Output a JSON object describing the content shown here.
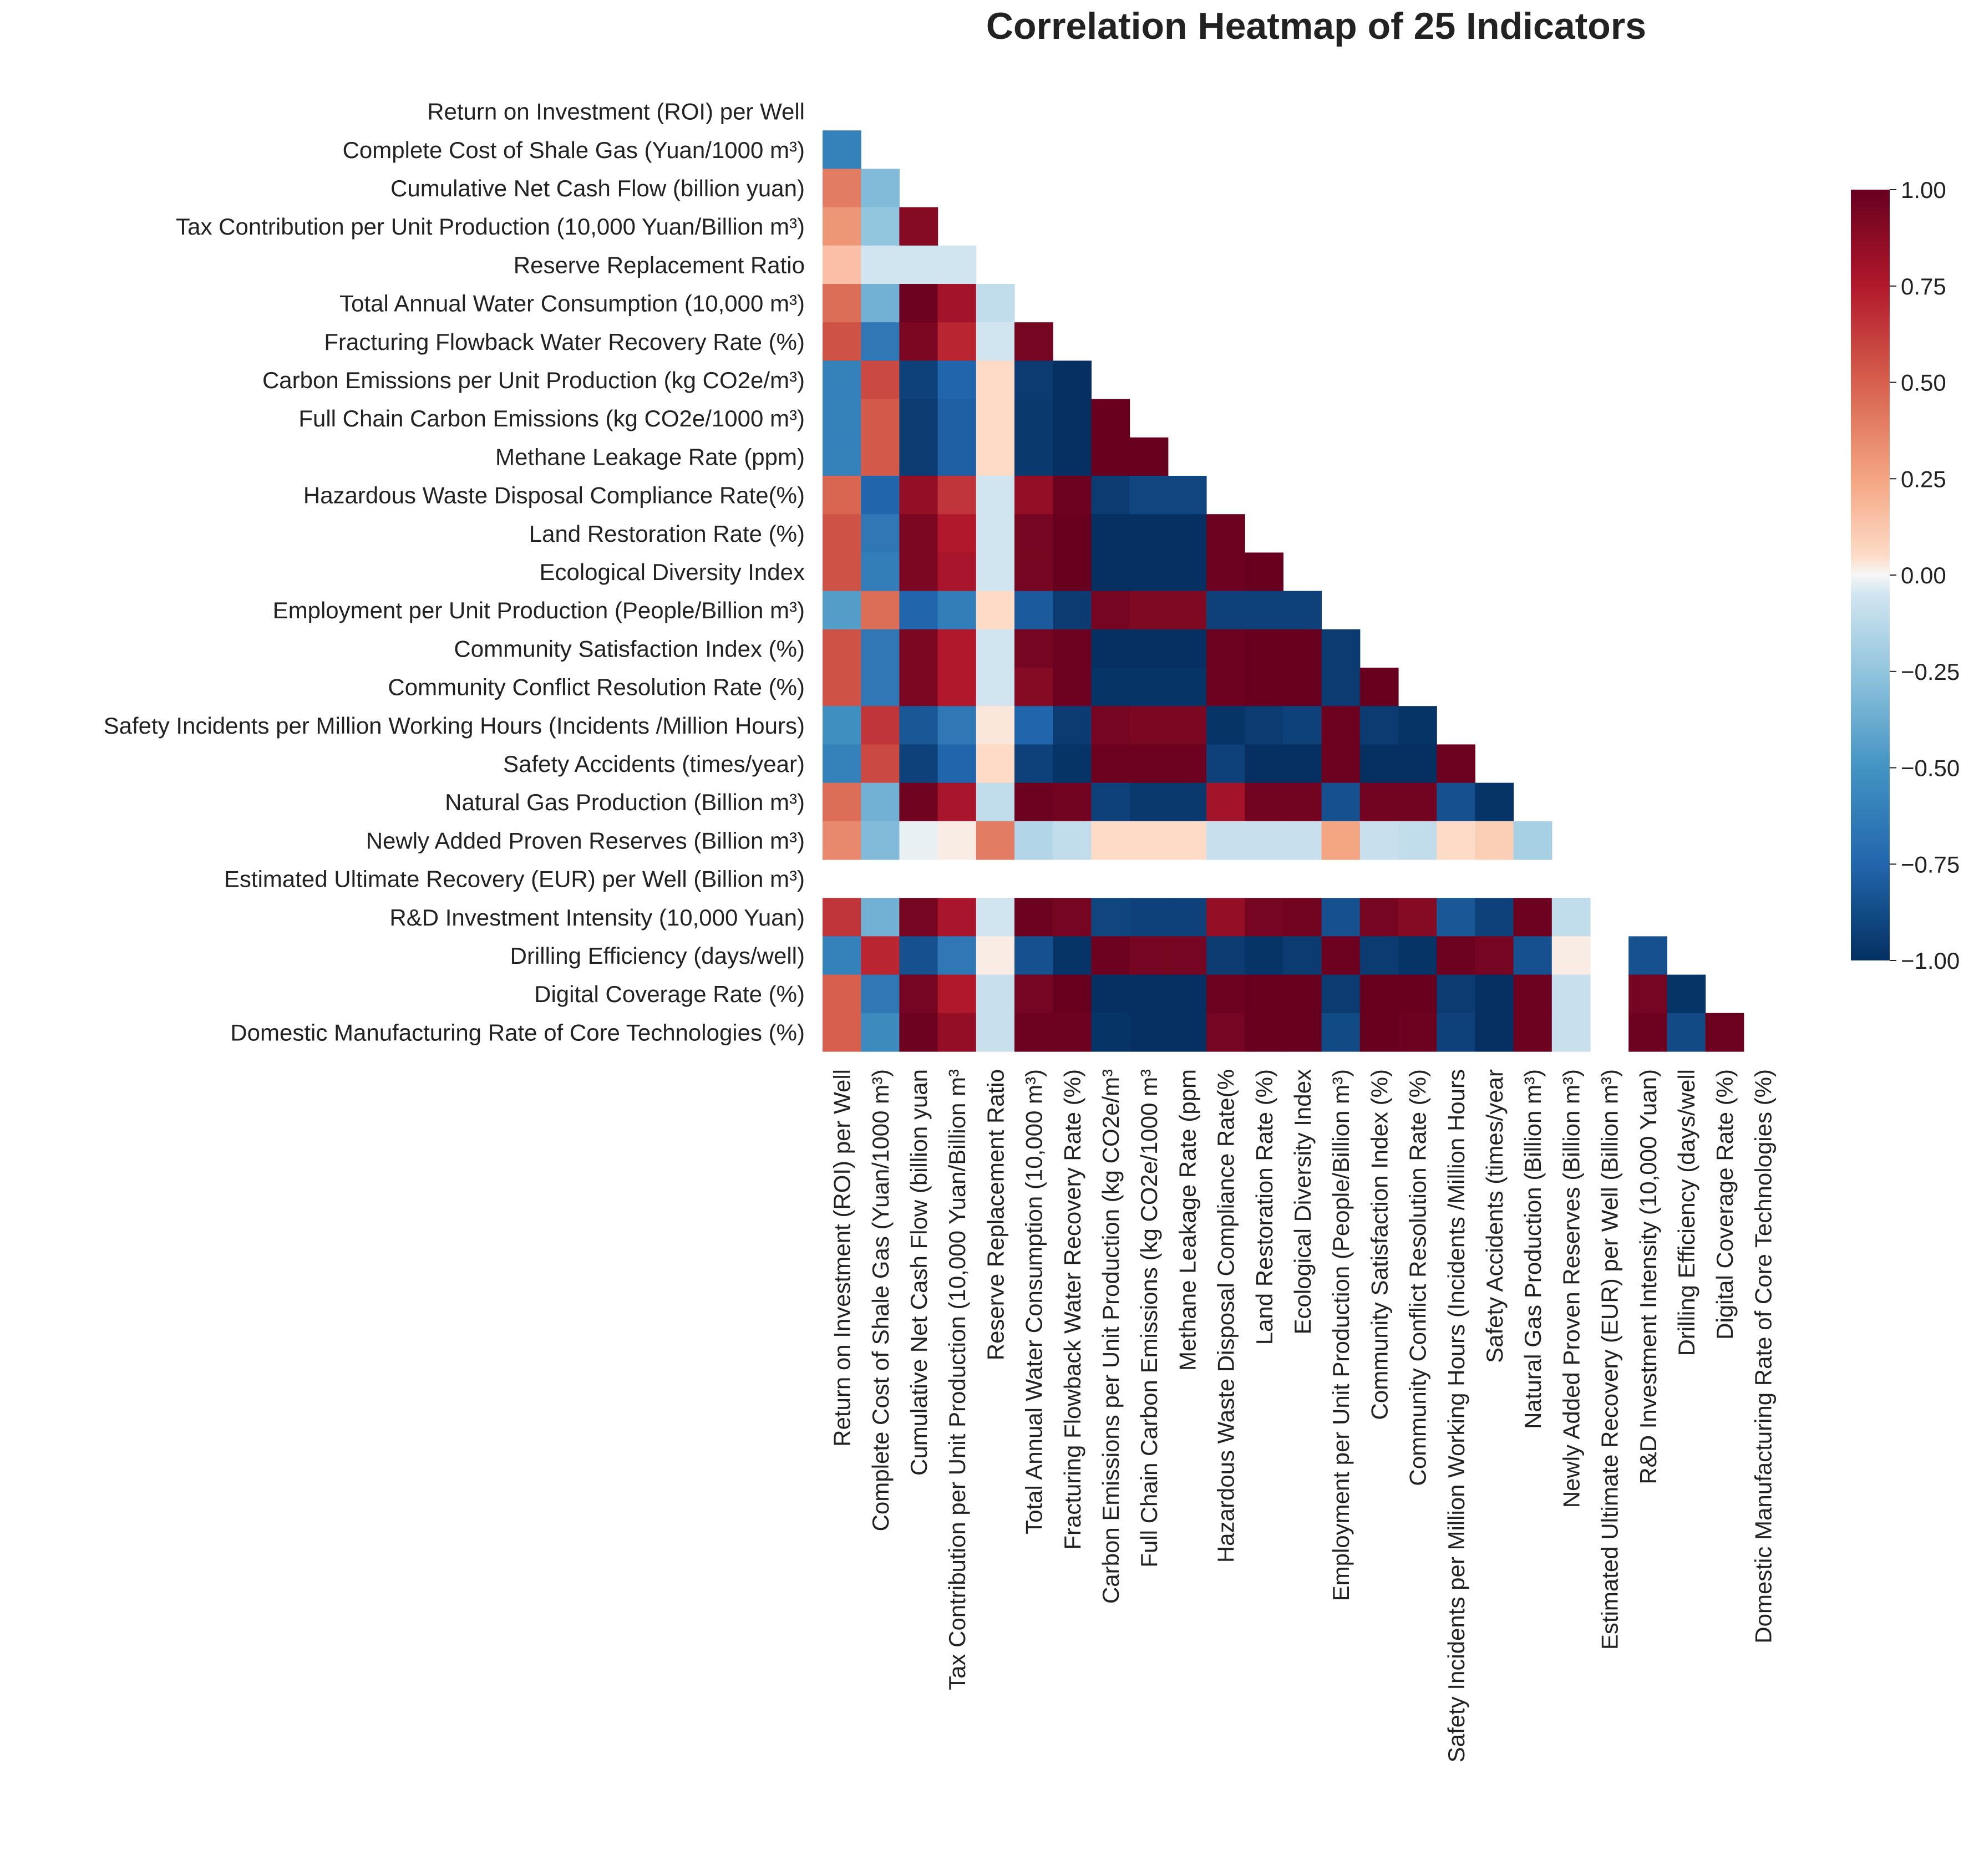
{
  "chart_data": {
    "type": "heatmap",
    "title": "Correlation Heatmap of 25 Indicators",
    "mask": "upper-triangle-including-diagonal",
    "labels": [
      "Return on Investment (ROI) per Well",
      "Complete Cost of Shale Gas (Yuan/1000 m³)",
      "Cumulative Net Cash Flow (billion yuan)",
      "Tax Contribution per Unit Production (10,000 Yuan/Billion m³)",
      "Reserve Replacement Ratio",
      "Total Annual Water Consumption (10,000 m³)",
      "Fracturing Flowback Water Recovery Rate (%)",
      "Carbon Emissions per Unit Production (kg CO2e/m³)",
      "Full Chain Carbon Emissions (kg CO2e/1000 m³)",
      "Methane Leakage Rate (ppm)",
      "Hazardous Waste Disposal Compliance Rate(%)",
      "Land Restoration Rate (%)",
      "Ecological Diversity Index",
      "Employment per Unit Production (People/Billion m³)",
      "Community Satisfaction Index (%)",
      "Community Conflict Resolution Rate (%)",
      "Safety Incidents per Million Working Hours (Incidents /Million Hours)",
      "Safety Accidents (times/year)",
      "Natural Gas Production (Billion m³)",
      "Newly Added Proven Reserves (Billion m³)",
      "Estimated Ultimate Recovery (EUR) per Well (Billion m³)",
      "R&D Investment Intensity (10,000 Yuan)",
      "Drilling Efficiency (days/well)",
      "Digital Coverage Rate (%)",
      "Domestic Manufacturing Rate of Core Technologies (%)"
    ],
    "x_tick_labels": [
      "Return on Investment (ROI) per Well",
      "Complete Cost of Shale Gas (Yuan/1000 m³)",
      "Cumulative Net Cash Flow (billion yuan",
      "Tax Contribution per Unit Production (10,000 Yuan/Billion m³",
      "Reserve Replacement Ratio",
      "Total Annual Water Consumption (10,000 m³)",
      "Fracturing Flowback Water Recovery Rate (%)",
      "Carbon Emissions per Unit Production (kg CO2e/m³",
      "Full Chain Carbon Emissions (kg CO2e/1000 m³",
      "Methane Leakage Rate (ppm",
      "Hazardous Waste Disposal Compliance Rate(%",
      "Land Restoration Rate (%)",
      "Ecological Diversity Index",
      "Employment per Unit Production (People/Billion m³)",
      "Community Satisfaction Index (%)",
      "Community Conflict Resolution Rate (%)",
      "Safety Incidents per Million Working Hours (Incidents /Million Hours",
      "Safety Accidents (times/year",
      "Natural Gas Production (Billion m³)",
      "Newly Added Proven Reserves (Billion m³)",
      "Estimated Ultimate Recovery (EUR) per Well (Billion m³)",
      "R&D Investment Intensity (10,000 Yuan)",
      "Drilling Efficiency (days/well",
      "Digital Coverage Rate (%)",
      "Domestic Manufacturing Rate of Core Technologies (%)"
    ],
    "lower_triangle_rows": [
      [],
      [
        -0.6
      ],
      [
        0.4,
        -0.3
      ],
      [
        0.3,
        -0.25,
        0.9
      ],
      [
        0.15,
        -0.05,
        -0.05,
        -0.05
      ],
      [
        0.45,
        -0.35,
        0.98,
        0.8,
        -0.1
      ],
      [
        0.55,
        -0.65,
        0.93,
        0.7,
        -0.05,
        0.95
      ],
      [
        -0.6,
        0.58,
        -0.92,
        -0.75,
        0.05,
        -0.95,
        -1.0
      ],
      [
        -0.6,
        0.52,
        -0.95,
        -0.78,
        0.05,
        -0.96,
        -1.0,
        1.0
      ],
      [
        -0.6,
        0.52,
        -0.95,
        -0.78,
        0.05,
        -0.96,
        -1.0,
        1.0,
        1.0
      ],
      [
        0.48,
        -0.75,
        0.85,
        0.65,
        -0.05,
        0.85,
        0.98,
        -0.95,
        -0.9,
        -0.9
      ],
      [
        0.55,
        -0.65,
        0.93,
        0.75,
        -0.05,
        0.95,
        1.0,
        -1.0,
        -1.0,
        -1.0,
        0.98
      ],
      [
        0.55,
        -0.62,
        0.93,
        0.78,
        -0.05,
        0.95,
        1.0,
        -1.0,
        -1.0,
        -1.0,
        0.98,
        1.0
      ],
      [
        -0.45,
        0.45,
        -0.75,
        -0.62,
        0.05,
        -0.8,
        -0.95,
        0.95,
        0.92,
        0.92,
        -0.92,
        -0.92,
        -0.92
      ],
      [
        0.55,
        -0.65,
        0.93,
        0.75,
        -0.05,
        0.95,
        0.98,
        -1.0,
        -1.0,
        -1.0,
        0.98,
        1.0,
        1.0,
        -0.95
      ],
      [
        0.55,
        -0.65,
        0.93,
        0.75,
        -0.05,
        0.9,
        0.98,
        -0.98,
        -0.98,
        -0.98,
        0.98,
        1.0,
        1.0,
        -0.95,
        1.0
      ],
      [
        -0.52,
        0.65,
        -0.82,
        -0.65,
        0.03,
        -0.75,
        -0.95,
        0.95,
        0.93,
        0.93,
        -0.98,
        -0.95,
        -0.92,
        0.98,
        -0.95,
        -0.98
      ],
      [
        -0.6,
        0.58,
        -0.92,
        -0.75,
        0.05,
        -0.92,
        -0.98,
        0.98,
        0.98,
        0.98,
        -0.92,
        -1.0,
        -1.0,
        0.98,
        -1.0,
        -1.0,
        0.98
      ],
      [
        0.45,
        -0.35,
        0.97,
        0.78,
        -0.1,
        0.98,
        0.96,
        -0.92,
        -0.96,
        -0.96,
        0.8,
        0.96,
        0.96,
        -0.85,
        0.96,
        0.96,
        -0.85,
        -0.98
      ],
      [
        0.35,
        -0.3,
        -0.02,
        0.02,
        0.4,
        -0.15,
        -0.1,
        0.05,
        0.05,
        0.05,
        -0.08,
        -0.08,
        -0.08,
        0.25,
        -0.08,
        -0.1,
        0.05,
        0.1,
        -0.18
      ],
      [
        null,
        null,
        null,
        null,
        null,
        null,
        null,
        null,
        null,
        null,
        null,
        null,
        null,
        null,
        null,
        null,
        null,
        null,
        null,
        null
      ],
      [
        0.65,
        -0.35,
        0.95,
        0.78,
        -0.05,
        0.98,
        0.95,
        -0.9,
        -0.92,
        -0.92,
        0.85,
        0.95,
        0.96,
        -0.85,
        0.95,
        0.9,
        -0.82,
        -0.92,
        0.98,
        -0.1,
        null
      ],
      [
        -0.6,
        0.7,
        -0.85,
        -0.65,
        0.02,
        -0.85,
        -0.98,
        0.98,
        0.95,
        0.95,
        -0.95,
        -0.98,
        -0.95,
        0.98,
        -0.95,
        -0.98,
        0.98,
        0.95,
        -0.85,
        0.02,
        null,
        -0.85
      ],
      [
        0.5,
        -0.65,
        0.95,
        0.75,
        -0.08,
        0.95,
        1.0,
        -1.0,
        -1.0,
        -1.0,
        0.98,
        1.0,
        1.0,
        -0.95,
        1.0,
        1.0,
        -0.95,
        -1.0,
        0.98,
        -0.08,
        null,
        0.95,
        -0.98
      ],
      [
        0.5,
        -0.55,
        0.98,
        0.85,
        -0.08,
        0.98,
        0.98,
        -0.98,
        -1.0,
        -1.0,
        0.95,
        1.0,
        1.0,
        -0.88,
        1.0,
        0.98,
        -0.92,
        -1.0,
        0.98,
        -0.08,
        null,
        0.98,
        -0.88,
        0.98
      ]
    ],
    "colorbar": {
      "colormap": "RdBu_r",
      "vmin": -1.0,
      "vmax": 1.0,
      "ticks": [
        1.0,
        0.75,
        0.5,
        0.25,
        0.0,
        -0.25,
        -0.5,
        -0.75,
        -1.0
      ],
      "tick_labels": [
        "1.00",
        "0.75",
        "0.50",
        "0.25",
        "0.00",
        "−0.25",
        "−0.50",
        "−0.75",
        "−1.00"
      ]
    }
  }
}
